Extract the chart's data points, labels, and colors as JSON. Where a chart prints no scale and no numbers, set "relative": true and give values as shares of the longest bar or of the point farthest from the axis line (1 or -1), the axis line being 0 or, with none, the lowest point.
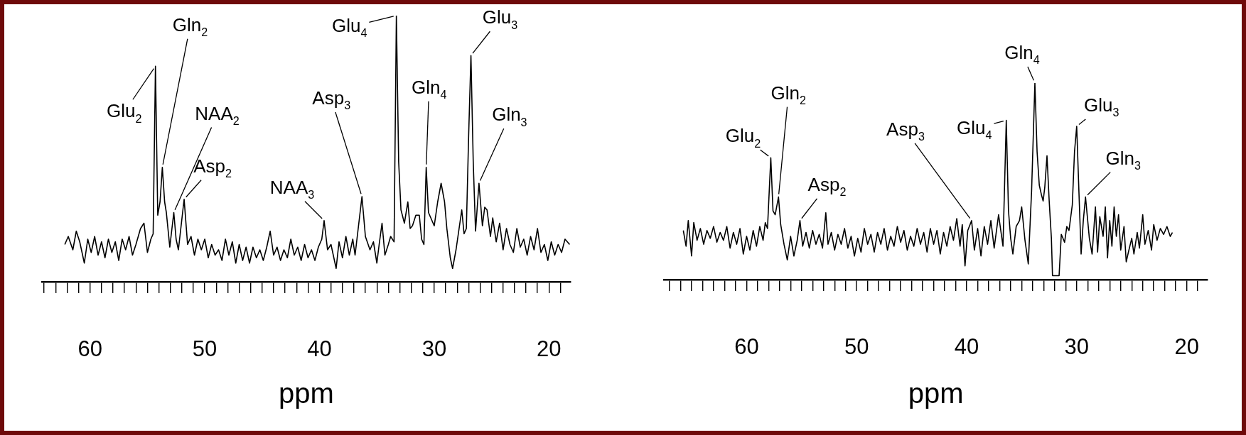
{
  "chart_data": [
    {
      "type": "line",
      "relative": true,
      "color": "#000000",
      "grid": false,
      "line_style": "solid",
      "tick_labels": "x",
      "xlabel": "ppm",
      "xlim": [
        64.2,
        18.1
      ],
      "xticks": [
        {
          "value": 64,
          "label": null
        },
        {
          "value": 63,
          "label": null
        },
        {
          "value": 62,
          "label": null
        },
        {
          "value": 61,
          "label": null
        },
        60,
        {
          "value": 59,
          "label": null
        },
        {
          "value": 58,
          "label": null
        },
        {
          "value": 57,
          "label": null
        },
        {
          "value": 56,
          "label": null
        },
        {
          "value": 55,
          "label": null
        },
        {
          "value": 54,
          "label": null
        },
        {
          "value": 53,
          "label": null
        },
        {
          "value": 52,
          "label": null
        },
        {
          "value": 51,
          "label": null
        },
        50,
        {
          "value": 49,
          "label": null
        },
        {
          "value": 48,
          "label": null
        },
        {
          "value": 47,
          "label": null
        },
        {
          "value": 46,
          "label": null
        },
        {
          "value": 45,
          "label": null
        },
        {
          "value": 44,
          "label": null
        },
        {
          "value": 43,
          "label": null
        },
        {
          "value": 42,
          "label": null
        },
        {
          "value": 41,
          "label": null
        },
        40,
        {
          "value": 39,
          "label": null
        },
        {
          "value": 38,
          "label": null
        },
        {
          "value": 37,
          "label": null
        },
        {
          "value": 36,
          "label": null
        },
        {
          "value": 35,
          "label": null
        },
        {
          "value": 34,
          "label": null
        },
        {
          "value": 33,
          "label": null
        },
        {
          "value": 32,
          "label": null
        },
        {
          "value": 31,
          "label": null
        },
        30,
        {
          "value": 29,
          "label": null
        },
        {
          "value": 28,
          "label": null
        },
        {
          "value": 27,
          "label": null
        },
        {
          "value": 26,
          "label": null
        },
        {
          "value": 25,
          "label": null
        },
        {
          "value": 24,
          "label": null
        },
        {
          "value": 23,
          "label": null
        },
        {
          "value": 22,
          "label": null
        },
        {
          "value": 21,
          "label": null
        },
        20,
        {
          "value": 19,
          "label": null
        }
      ],
      "x": [
        62.2,
        61.9,
        61.5,
        61.2,
        60.9,
        60.5,
        60.2,
        59.9,
        59.6,
        59.3,
        59.0,
        58.7,
        58.4,
        58.1,
        57.8,
        57.5,
        57.2,
        56.9,
        56.6,
        56.3,
        56.0,
        55.6,
        55.3,
        55.0,
        54.7,
        54.5,
        54.3,
        54.1,
        53.9,
        53.7,
        53.5,
        53.35,
        53.05,
        52.7,
        52.5,
        52.3,
        51.8,
        51.5,
        51.2,
        50.9,
        50.6,
        50.3,
        50.0,
        49.7,
        49.4,
        49.1,
        48.8,
        48.5,
        48.2,
        47.9,
        47.6,
        47.3,
        47.0,
        46.7,
        46.4,
        46.1,
        45.8,
        45.5,
        45.2,
        44.9,
        44.6,
        44.3,
        44.0,
        43.7,
        43.4,
        43.1,
        42.8,
        42.5,
        42.2,
        41.9,
        41.6,
        41.3,
        41.0,
        40.7,
        40.4,
        40.1,
        39.8,
        39.6,
        39.3,
        39.0,
        38.55,
        38.3,
        38.0,
        37.7,
        37.4,
        37.1,
        36.9,
        36.3,
        36.0,
        35.6,
        35.3,
        35.0,
        34.8,
        34.55,
        34.3,
        34.0,
        33.8,
        33.5,
        33.3,
        33.1,
        32.9,
        32.6,
        32.3,
        32.1,
        31.9,
        31.6,
        31.3,
        31.1,
        30.9,
        30.7,
        30.5,
        30.3,
        30.0,
        29.7,
        29.4,
        29.1,
        28.9,
        28.6,
        28.4,
        28.1,
        27.9,
        27.6,
        27.4,
        27.2,
        27.0,
        26.8,
        26.6,
        26.4,
        26.1,
        25.8,
        25.6,
        25.4,
        25.1,
        24.9,
        24.6,
        24.3,
        24.0,
        23.7,
        23.4,
        23.1,
        22.8,
        22.5,
        22.2,
        21.9,
        21.6,
        21.3,
        21.0,
        20.7,
        20.4,
        20.1,
        19.8,
        19.5,
        19.2,
        18.9,
        18.6,
        18.2
      ],
      "values": [
        0.14,
        0.17,
        0.12,
        0.19,
        0.15,
        0.07,
        0.16,
        0.11,
        0.17,
        0.1,
        0.15,
        0.09,
        0.16,
        0.11,
        0.15,
        0.08,
        0.16,
        0.12,
        0.17,
        0.1,
        0.14,
        0.2,
        0.22,
        0.11,
        0.16,
        0.18,
        0.81,
        0.25,
        0.3,
        0.43,
        0.3,
        0.26,
        0.13,
        0.26,
        0.16,
        0.12,
        0.31,
        0.14,
        0.17,
        0.1,
        0.16,
        0.12,
        0.16,
        0.09,
        0.14,
        0.1,
        0.12,
        0.08,
        0.16,
        0.1,
        0.15,
        0.07,
        0.14,
        0.08,
        0.13,
        0.07,
        0.13,
        0.09,
        0.12,
        0.08,
        0.13,
        0.19,
        0.1,
        0.13,
        0.08,
        0.12,
        0.09,
        0.16,
        0.1,
        0.13,
        0.08,
        0.14,
        0.09,
        0.12,
        0.08,
        0.13,
        0.16,
        0.23,
        0.12,
        0.14,
        0.05,
        0.15,
        0.09,
        0.17,
        0.1,
        0.16,
        0.1,
        0.32,
        0.17,
        0.12,
        0.15,
        0.07,
        0.14,
        0.22,
        0.1,
        0.14,
        0.17,
        0.15,
        1.0,
        0.45,
        0.27,
        0.22,
        0.3,
        0.2,
        0.21,
        0.25,
        0.25,
        0.16,
        0.14,
        0.43,
        0.26,
        0.24,
        0.21,
        0.3,
        0.37,
        0.3,
        0.2,
        0.09,
        0.05,
        0.12,
        0.18,
        0.27,
        0.18,
        0.2,
        0.55,
        0.85,
        0.45,
        0.19,
        0.37,
        0.21,
        0.28,
        0.27,
        0.17,
        0.24,
        0.15,
        0.22,
        0.12,
        0.2,
        0.14,
        0.11,
        0.2,
        0.13,
        0.16,
        0.1,
        0.17,
        0.12,
        0.2,
        0.11,
        0.14,
        0.08,
        0.15,
        0.1,
        0.14,
        0.11,
        0.16,
        0.14
      ],
      "annotations": [
        {
          "text": "Glu$_{2}$",
          "x": 54.3,
          "y": 0.81
        },
        {
          "text": "Gln$_{2}$",
          "x": 53.7,
          "y": 0.43
        },
        {
          "text": "NAA$_{2}$",
          "x": 52.7,
          "y": 0.26
        },
        {
          "text": "Asp$_{2}$",
          "x": 51.8,
          "y": 0.31
        },
        {
          "text": "NAA$_{3}$",
          "x": 39.6,
          "y": 0.23
        },
        {
          "text": "Asp$_{3}$",
          "x": 36.3,
          "y": 0.32
        },
        {
          "text": "Glu$_{4}$",
          "x": 33.3,
          "y": 1.0
        },
        {
          "text": "Gln$_{4}$",
          "x": 30.7,
          "y": 0.43
        },
        {
          "text": "Glu$_{3}$",
          "x": 26.8,
          "y": 0.85
        },
        {
          "text": "Gln$_{3}$",
          "x": 26.1,
          "y": 0.37
        }
      ]
    },
    {
      "type": "line",
      "relative": true,
      "color": "#000000",
      "grid": false,
      "line_style": "solid",
      "tick_labels": "x",
      "xlabel": "ppm",
      "xlim": [
        67.5,
        18.1
      ],
      "xticks": [
        {
          "value": 67,
          "label": null
        },
        {
          "value": 66,
          "label": null
        },
        {
          "value": 65,
          "label": null
        },
        {
          "value": 64,
          "label": null
        },
        {
          "value": 63,
          "label": null
        },
        {
          "value": 62,
          "label": null
        },
        {
          "value": 61,
          "label": null
        },
        60,
        {
          "value": 59,
          "label": null
        },
        {
          "value": 58,
          "label": null
        },
        {
          "value": 57,
          "label": null
        },
        {
          "value": 56,
          "label": null
        },
        {
          "value": 55,
          "label": null
        },
        {
          "value": 54,
          "label": null
        },
        {
          "value": 53,
          "label": null
        },
        {
          "value": 52,
          "label": null
        },
        {
          "value": 51,
          "label": null
        },
        50,
        {
          "value": 49,
          "label": null
        },
        {
          "value": 48,
          "label": null
        },
        {
          "value": 47,
          "label": null
        },
        {
          "value": 46,
          "label": null
        },
        {
          "value": 45,
          "label": null
        },
        {
          "value": 44,
          "label": null
        },
        {
          "value": 43,
          "label": null
        },
        {
          "value": 42,
          "label": null
        },
        {
          "value": 41,
          "label": null
        },
        40,
        {
          "value": 39,
          "label": null
        },
        {
          "value": 38,
          "label": null
        },
        {
          "value": 37,
          "label": null
        },
        {
          "value": 36,
          "label": null
        },
        {
          "value": 35,
          "label": null
        },
        {
          "value": 34,
          "label": null
        },
        {
          "value": 33,
          "label": null
        },
        {
          "value": 32,
          "label": null
        },
        {
          "value": 31,
          "label": null
        },
        30,
        {
          "value": 29,
          "label": null
        },
        {
          "value": 28,
          "label": null
        },
        {
          "value": 27,
          "label": null
        },
        {
          "value": 26,
          "label": null
        },
        {
          "value": 25,
          "label": null
        },
        {
          "value": 24,
          "label": null
        },
        {
          "value": 23,
          "label": null
        },
        {
          "value": 22,
          "label": null
        },
        {
          "value": 21,
          "label": null
        },
        20,
        {
          "value": 19,
          "label": null
        }
      ],
      "x": [
        65.75,
        65.5,
        65.3,
        65.0,
        64.8,
        64.5,
        64.2,
        63.9,
        63.6,
        63.3,
        63.0,
        62.7,
        62.4,
        62.1,
        61.8,
        61.5,
        61.2,
        60.9,
        60.6,
        60.3,
        60.0,
        59.7,
        59.4,
        59.1,
        58.8,
        58.5,
        58.3,
        58.1,
        57.8,
        57.6,
        57.4,
        57.1,
        56.9,
        56.6,
        56.3,
        56.0,
        55.7,
        55.4,
        55.15,
        54.9,
        54.6,
        54.3,
        54.0,
        53.7,
        53.4,
        53.1,
        52.8,
        52.6,
        52.3,
        52.0,
        51.7,
        51.4,
        51.1,
        50.8,
        50.5,
        50.2,
        49.9,
        49.6,
        49.3,
        49.0,
        48.7,
        48.4,
        48.1,
        47.8,
        47.5,
        47.2,
        46.9,
        46.6,
        46.3,
        46.0,
        45.7,
        45.4,
        45.1,
        44.8,
        44.5,
        44.2,
        43.9,
        43.6,
        43.3,
        43.0,
        42.7,
        42.4,
        42.1,
        41.8,
        41.5,
        41.2,
        40.9,
        40.6,
        40.4,
        40.15,
        39.9,
        39.55,
        39.3,
        39.0,
        38.7,
        38.4,
        38.1,
        37.8,
        37.5,
        37.1,
        36.9,
        36.7,
        36.4,
        36.2,
        36.0,
        35.8,
        35.5,
        35.2,
        35.0,
        34.7,
        34.4,
        34.1,
        33.8,
        33.6,
        33.4,
        33.2,
        33.05,
        32.9,
        32.7,
        32.5,
        32.3,
        32.2,
        31.6,
        31.4,
        31.1,
        30.9,
        30.7,
        30.4,
        30.2,
        30.0,
        29.8,
        29.6,
        29.4,
        29.2,
        29.0,
        28.85,
        28.6,
        28.3,
        28.1,
        27.9,
        27.6,
        27.4,
        27.2,
        27.0,
        26.8,
        26.6,
        26.4,
        26.2,
        26.0,
        25.7,
        25.5,
        25.3,
        25.0,
        24.8,
        24.5,
        24.3,
        24.0,
        23.8,
        23.5,
        23.2,
        23.0,
        22.7,
        22.4,
        22.1,
        21.8,
        21.5,
        21.3
      ],
      "values": [
        0.25,
        0.17,
        0.3,
        0.12,
        0.29,
        0.2,
        0.26,
        0.18,
        0.25,
        0.21,
        0.27,
        0.19,
        0.24,
        0.2,
        0.27,
        0.16,
        0.24,
        0.18,
        0.26,
        0.13,
        0.22,
        0.15,
        0.25,
        0.17,
        0.27,
        0.2,
        0.29,
        0.26,
        0.62,
        0.35,
        0.33,
        0.42,
        0.28,
        0.18,
        0.1,
        0.22,
        0.12,
        0.2,
        0.3,
        0.17,
        0.24,
        0.16,
        0.25,
        0.18,
        0.23,
        0.16,
        0.34,
        0.18,
        0.24,
        0.15,
        0.23,
        0.18,
        0.26,
        0.16,
        0.22,
        0.12,
        0.21,
        0.14,
        0.26,
        0.18,
        0.23,
        0.14,
        0.24,
        0.18,
        0.26,
        0.15,
        0.22,
        0.17,
        0.27,
        0.19,
        0.25,
        0.15,
        0.22,
        0.17,
        0.26,
        0.18,
        0.24,
        0.14,
        0.26,
        0.18,
        0.25,
        0.13,
        0.24,
        0.17,
        0.27,
        0.2,
        0.31,
        0.17,
        0.28,
        0.07,
        0.25,
        0.3,
        0.15,
        0.26,
        0.12,
        0.27,
        0.18,
        0.3,
        0.16,
        0.33,
        0.25,
        0.17,
        0.81,
        0.35,
        0.21,
        0.13,
        0.27,
        0.3,
        0.37,
        0.2,
        0.08,
        0.45,
        1.0,
        0.65,
        0.48,
        0.43,
        0.4,
        0.47,
        0.63,
        0.4,
        0.21,
        0.02,
        0.02,
        0.23,
        0.19,
        0.27,
        0.25,
        0.38,
        0.65,
        0.78,
        0.45,
        0.13,
        0.3,
        0.42,
        0.3,
        0.21,
        0.13,
        0.37,
        0.14,
        0.32,
        0.22,
        0.37,
        0.11,
        0.3,
        0.17,
        0.37,
        0.22,
        0.33,
        0.15,
        0.27,
        0.09,
        0.14,
        0.21,
        0.13,
        0.24,
        0.16,
        0.33,
        0.18,
        0.25,
        0.15,
        0.28,
        0.2,
        0.26,
        0.23,
        0.27,
        0.22,
        0.24
      ],
      "annotations": [
        {
          "text": "Glu$_{2}$",
          "x": 57.8,
          "y": 0.62
        },
        {
          "text": "Gln$_{2}$",
          "x": 57.1,
          "y": 0.42
        },
        {
          "text": "Asp$_{2}$",
          "x": 55.15,
          "y": 0.3
        },
        {
          "text": "Asp$_{3}$",
          "x": 39.55,
          "y": 0.3
        },
        {
          "text": "Glu$_{4}$",
          "x": 36.4,
          "y": 0.81
        },
        {
          "text": "Gln$_{4}$",
          "x": 33.8,
          "y": 1.0
        },
        {
          "text": "Glu$_{3}$",
          "x": 30.0,
          "y": 0.78
        },
        {
          "text": "Gln$_{3}$",
          "x": 29.2,
          "y": 0.42
        }
      ]
    }
  ]
}
